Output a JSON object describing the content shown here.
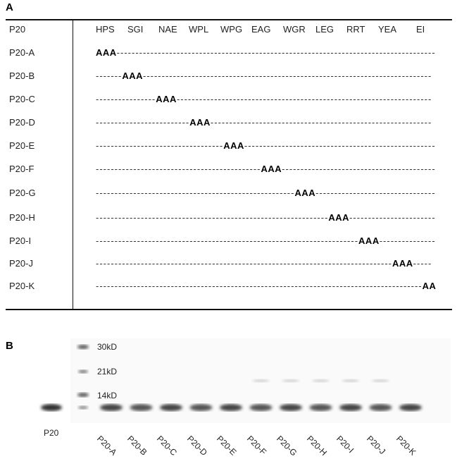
{
  "panel_a": {
    "label": "A",
    "header": {
      "name": "P20",
      "sequence": [
        "HPS",
        "SGI",
        "NAE",
        "WPL",
        "WPG",
        "EAG",
        "WGR",
        "LEG",
        "RRT",
        "YEA",
        "EI"
      ]
    },
    "rows": [
      {
        "name": "P20-A",
        "mutation": "AAA",
        "suffix": "-------------------------------------------------------------------------------------"
      },
      {
        "name": "P20-B",
        "prefix": "-------",
        "mutation": "AAA",
        "suffix": "-----------------------------------------------------------------------------"
      },
      {
        "name": "P20-C",
        "prefix": "----------------",
        "mutation": "AAA",
        "suffix": "--------------------------------------------------------------------"
      },
      {
        "name": "P20-D",
        "prefix": "-------------------------",
        "mutation": "AAA",
        "suffix": "-----------------------------------------------------------"
      },
      {
        "name": "P20-E",
        "prefix": "----------------------------------",
        "mutation": "AAA",
        "suffix": "---------------------------------------------------"
      },
      {
        "name": "P20-F",
        "prefix": "--------------------------------------------",
        "mutation": "AAA",
        "suffix": "-----------------------------------------"
      },
      {
        "name": "P20-G",
        "prefix": "-----------------------------------------------------",
        "mutation": "AAA",
        "suffix": "--------------------------------"
      },
      {
        "name": "P20-H",
        "prefix": "--------------------------------------------------------------",
        "mutation": "AAA",
        "suffix": "-----------------------"
      },
      {
        "name": "P20-I",
        "prefix": "----------------------------------------------------------------------",
        "mutation": "AAA",
        "suffix": "---------------"
      },
      {
        "name": "P20-J",
        "prefix": "-------------------------------------------------------------------------------",
        "mutation": "AAA",
        "suffix": "-----"
      },
      {
        "name": "P20-K",
        "prefix": "---------------------------------------------------------------------------------------",
        "mutation": "AA"
      }
    ]
  },
  "panel_b": {
    "label": "B",
    "markers": [
      "30kD",
      "21kD",
      "14kD"
    ],
    "control": "P20",
    "lanes": [
      "P20-A",
      "P20-B",
      "P20-C",
      "P20-D",
      "P20-E",
      "P20-F",
      "P20-G",
      "P20-H",
      "P20-I",
      "P20-J",
      "P20-K"
    ]
  }
}
